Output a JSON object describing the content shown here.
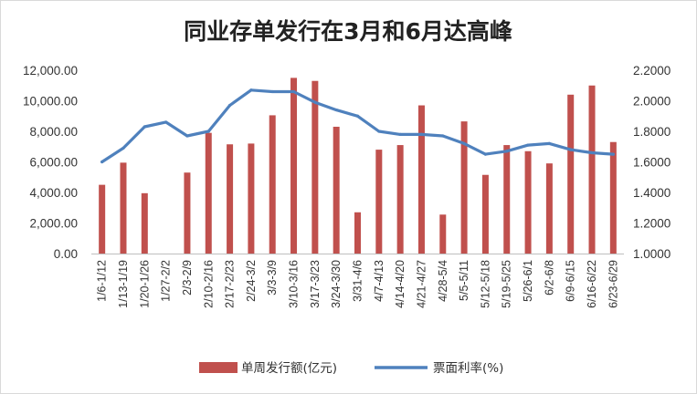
{
  "chart_data": {
    "type": "bar+line",
    "title": "同业存单发行在3月和6月达高峰",
    "categories": [
      "1/6-1/12",
      "1/13-1/19",
      "1/20-1/26",
      "1/27-2/2",
      "2/3-2/9",
      "2/10-2/16",
      "2/17-2/23",
      "2/24-3/2",
      "3/3-3/9",
      "3/10-3/16",
      "3/17-3/23",
      "3/24-3/30",
      "3/31-4/6",
      "4/7-4/13",
      "4/14-4/20",
      "4/21-4/27",
      "4/28-5/4",
      "5/5-5/11",
      "5/12-5/18",
      "5/19-5/25",
      "5/26-6/1",
      "6/2-6/8",
      "6/9-6/15",
      "6/16-6/22",
      "6/23-6/29"
    ],
    "series": [
      {
        "name": "单周发行额(亿元)",
        "type": "bar",
        "axis": "left",
        "color": "#C0504D",
        "values": [
          4500,
          5950,
          3950,
          null,
          5300,
          7900,
          7150,
          7200,
          9050,
          11500,
          11300,
          8300,
          2700,
          6800,
          7100,
          9700,
          2550,
          8650,
          5150,
          7100,
          6700,
          5900,
          10400,
          11000,
          7300
        ]
      },
      {
        "name": "票面利率(%)",
        "type": "line",
        "axis": "right",
        "color": "#4F81BD",
        "values": [
          1.6,
          1.69,
          1.83,
          1.86,
          1.77,
          1.8,
          1.97,
          2.07,
          2.06,
          2.06,
          1.99,
          1.94,
          1.9,
          1.8,
          1.78,
          1.78,
          1.77,
          1.72,
          1.65,
          1.67,
          1.71,
          1.72,
          1.68,
          1.66,
          1.65
        ]
      }
    ],
    "y_left": {
      "min": 0,
      "max": 12000,
      "step": 2000,
      "tick_labels": [
        "0.00",
        "2,000.00",
        "4,000.00",
        "6,000.00",
        "8,000.00",
        "10,000.00",
        "12,000.00"
      ]
    },
    "y_right": {
      "min": 1.0,
      "max": 2.2,
      "step": 0.2,
      "tick_labels": [
        "1.0000",
        "1.2000",
        "1.4000",
        "1.6000",
        "1.8000",
        "2.0000",
        "2.2000"
      ]
    },
    "grid": false,
    "legend_position": "bottom"
  }
}
